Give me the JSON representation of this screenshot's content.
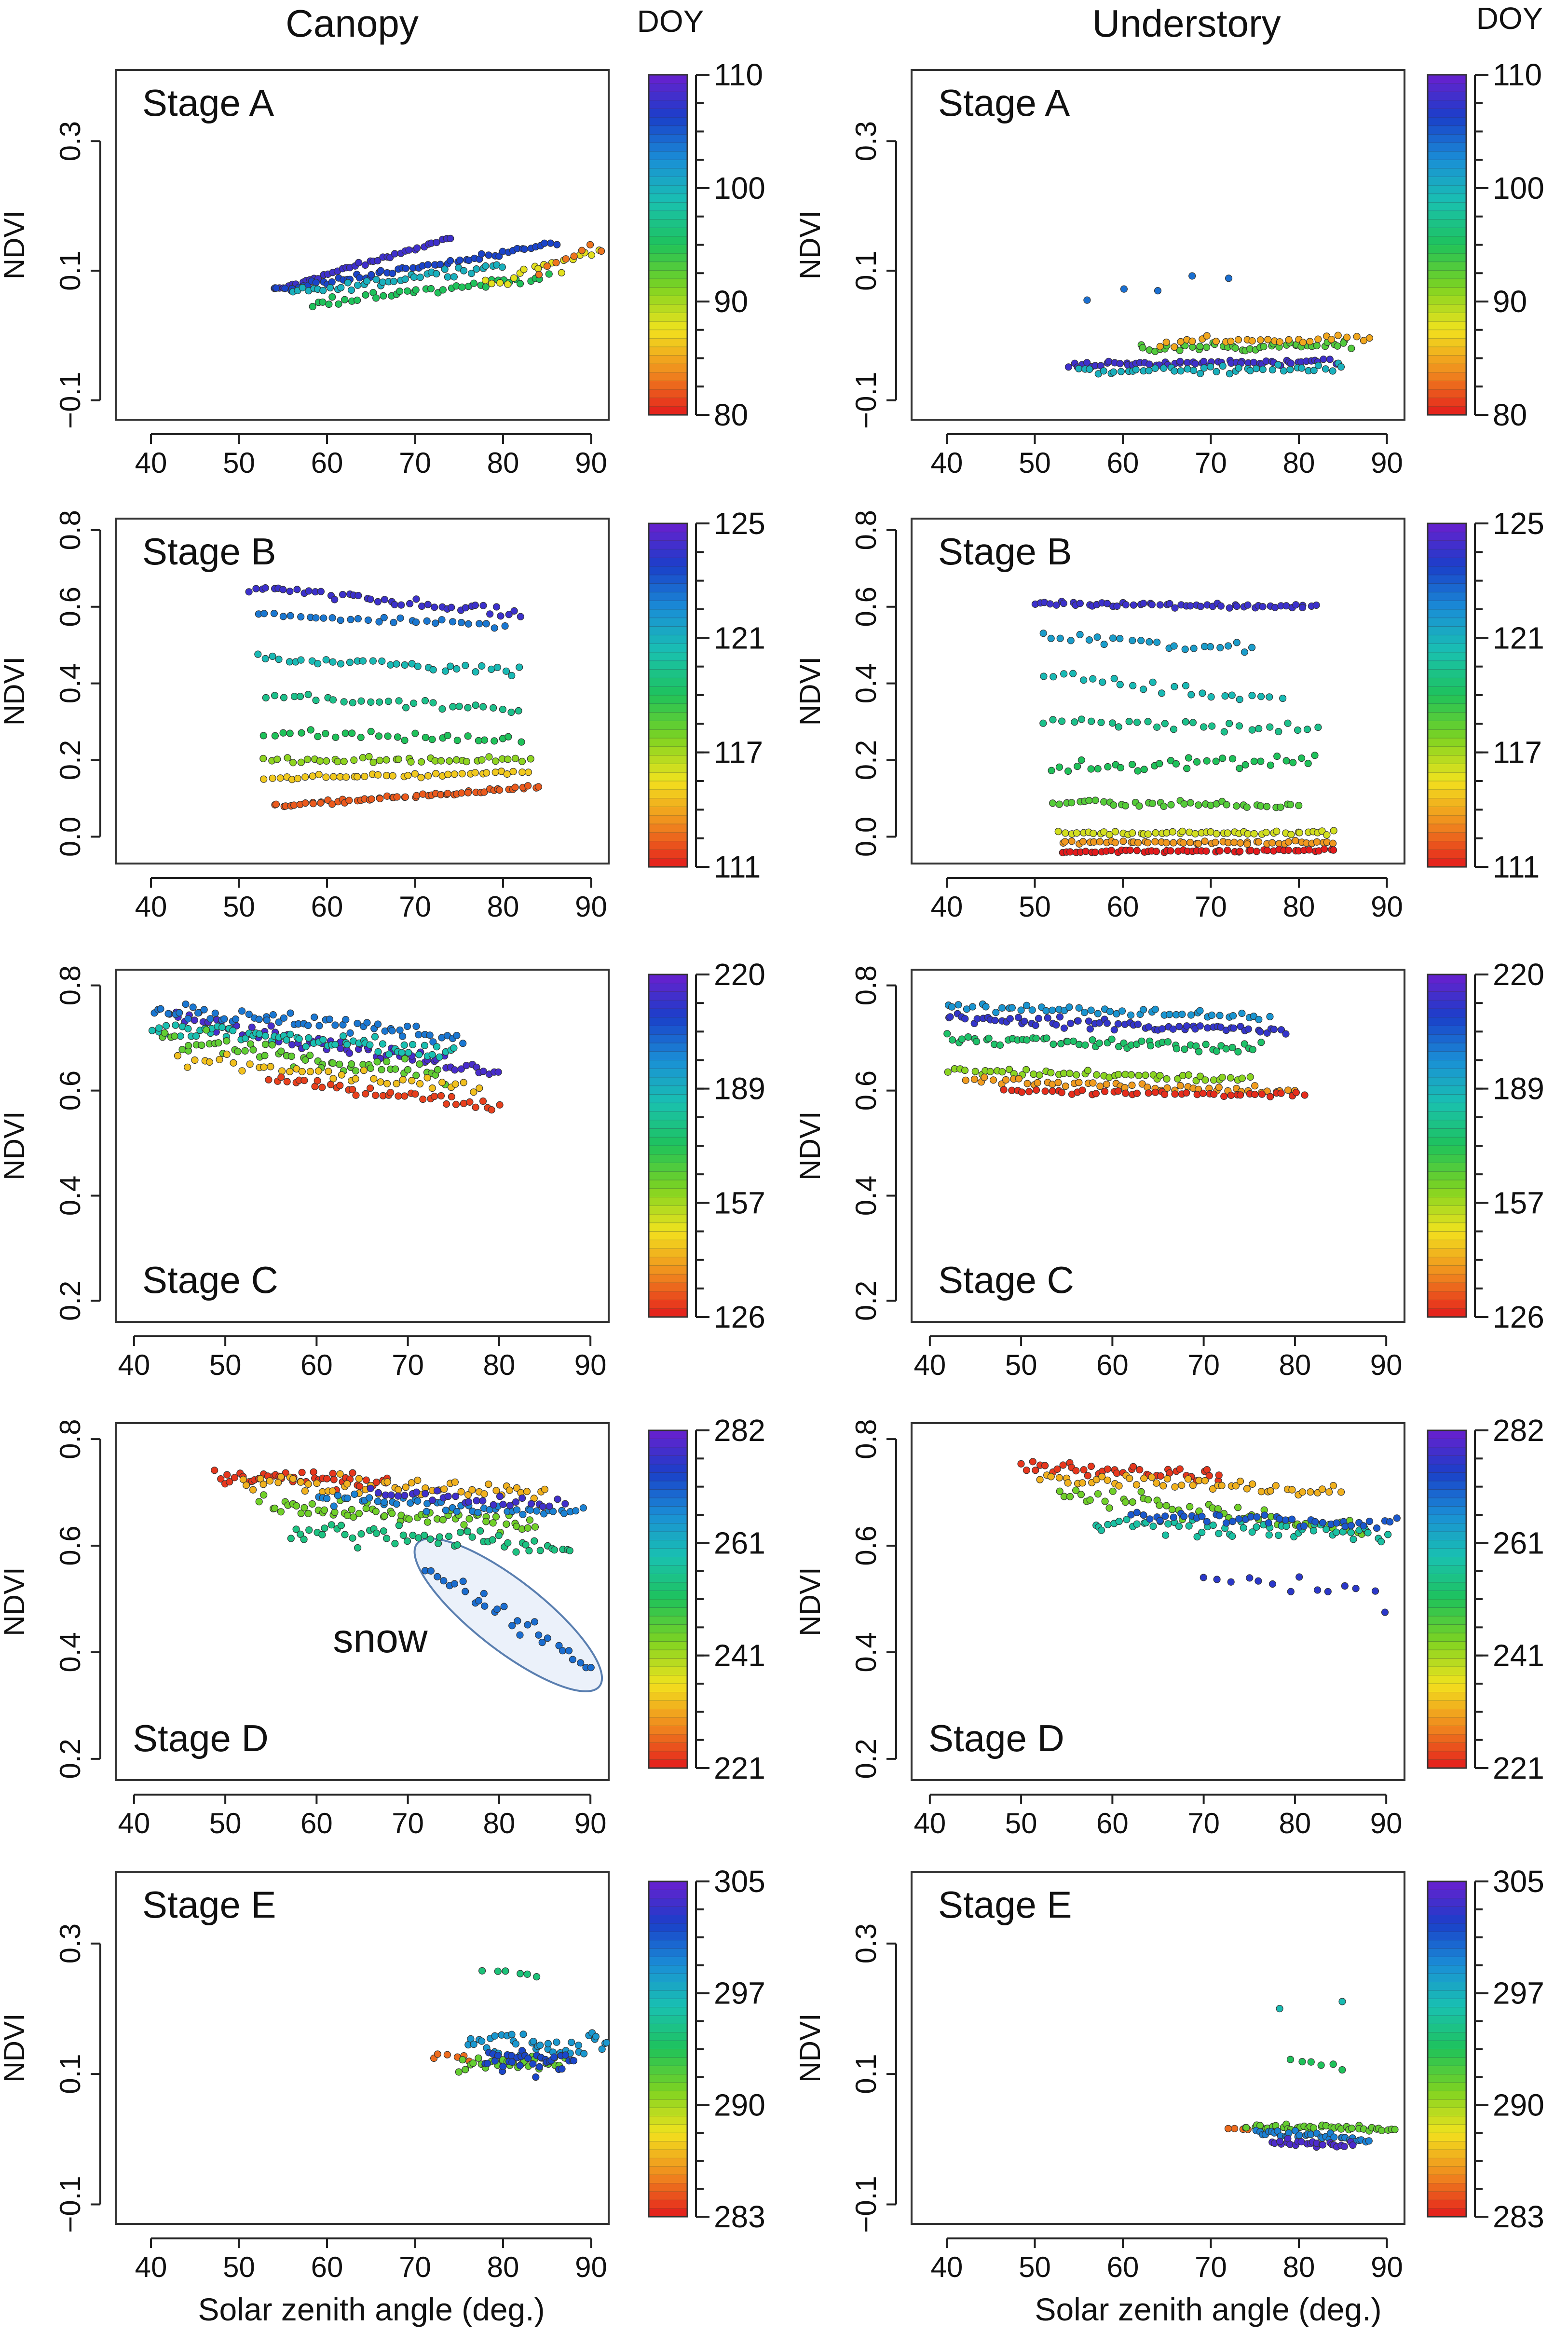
{
  "figure": {
    "col_titles": [
      "Canopy",
      "Understory"
    ],
    "doy_title": "DOY",
    "xlabel": "Solar zenith angle (deg.)",
    "ylabel": "NDVI",
    "colormap": [
      "#e41a1c",
      "#f08a1e",
      "#f2e21e",
      "#7ed321",
      "#1fc25a",
      "#19c1b0",
      "#1a8fd6",
      "#1a3fc9",
      "#6a1fcf"
    ]
  },
  "chart_data": [
    {
      "type": "scatter",
      "title": "Canopy",
      "stage": "Stage A",
      "xlabel": "Solar zenith angle (deg.)",
      "ylabel": "NDVI",
      "xlim": [
        36,
        92
      ],
      "ylim": [
        -0.13,
        0.41
      ],
      "xticks": [
        "40",
        "50",
        "60",
        "70",
        "80",
        "90"
      ],
      "yticks": [
        "-0.1",
        "0.1",
        "0.3"
      ],
      "doy_range": [
        80,
        110
      ],
      "doy_ticks": [
        "80",
        "90",
        "100",
        "110"
      ],
      "clusters": [
        {
          "doy": 108,
          "x0": 54,
          "x1": 74,
          "y0": 0.07,
          "y1": 0.15,
          "n": 40,
          "jitter": 0.004
        },
        {
          "doy": 106,
          "x0": 54,
          "x1": 86,
          "y0": 0.07,
          "y1": 0.14,
          "n": 60,
          "jitter": 0.005
        },
        {
          "doy": 100,
          "x0": 56,
          "x1": 80,
          "y0": 0.065,
          "y1": 0.11,
          "n": 40,
          "jitter": 0.008
        },
        {
          "doy": 95,
          "x0": 58,
          "x1": 85,
          "y0": 0.05,
          "y1": 0.09,
          "n": 40,
          "jitter": 0.008
        },
        {
          "doy": 88,
          "x0": 78,
          "x1": 91,
          "y0": 0.08,
          "y1": 0.13,
          "n": 18,
          "jitter": 0.015
        },
        {
          "doy": 83,
          "x0": 84,
          "x1": 91,
          "y0": 0.1,
          "y1": 0.14,
          "n": 8,
          "jitter": 0.01
        }
      ]
    },
    {
      "type": "scatter",
      "title": "Understory",
      "stage": "Stage A",
      "xlabel": "Solar zenith angle (deg.)",
      "ylabel": "NDVI",
      "xlim": [
        36,
        92
      ],
      "ylim": [
        -0.13,
        0.41
      ],
      "xticks": [
        "40",
        "50",
        "60",
        "70",
        "80",
        "90"
      ],
      "yticks": [
        "-0.1",
        "0.1",
        "0.3"
      ],
      "doy_range": [
        80,
        110
      ],
      "doy_ticks": [
        "80",
        "90",
        "100",
        "110"
      ],
      "clusters": [
        {
          "doy": 108,
          "x0": 54,
          "x1": 84,
          "y0": -0.045,
          "y1": -0.04,
          "n": 60,
          "jitter": 0.006
        },
        {
          "doy": 100,
          "x0": 55,
          "x1": 85,
          "y0": -0.055,
          "y1": -0.05,
          "n": 45,
          "jitter": 0.008
        },
        {
          "doy": 93,
          "x0": 62,
          "x1": 86,
          "y0": -0.02,
          "y1": -0.015,
          "n": 45,
          "jitter": 0.008
        },
        {
          "doy": 85,
          "x0": 64,
          "x1": 88,
          "y0": -0.01,
          "y1": -0.005,
          "n": 30,
          "jitter": 0.008
        },
        {
          "doy": 104,
          "x0": 56,
          "x1": 72,
          "y0": 0.06,
          "y1": 0.09,
          "n": 5,
          "jitter": 0.02
        }
      ]
    },
    {
      "type": "scatter",
      "title": "Canopy",
      "stage": "Stage B",
      "xlabel": "Solar zenith angle (deg.)",
      "ylabel": "NDVI",
      "xlim": [
        36,
        92
      ],
      "ylim": [
        -0.07,
        0.83
      ],
      "xticks": [
        "40",
        "50",
        "60",
        "70",
        "80",
        "90"
      ],
      "yticks": [
        "0.0",
        "0.2",
        "0.4",
        "0.6",
        "0.8"
      ],
      "doy_range": [
        111,
        125
      ],
      "doy_ticks": [
        "111",
        "117",
        "121",
        "125"
      ],
      "clusters": [
        {
          "doy": 124,
          "x0": 51,
          "x1": 82,
          "y0": 0.65,
          "y1": 0.58,
          "n": 45,
          "jitter": 0.015
        },
        {
          "doy": 122,
          "x0": 52,
          "x1": 80,
          "y0": 0.58,
          "y1": 0.55,
          "n": 30,
          "jitter": 0.01
        },
        {
          "doy": 120,
          "x0": 52,
          "x1": 82,
          "y0": 0.47,
          "y1": 0.43,
          "n": 35,
          "jitter": 0.015
        },
        {
          "doy": 119,
          "x0": 53,
          "x1": 82,
          "y0": 0.37,
          "y1": 0.33,
          "n": 30,
          "jitter": 0.015
        },
        {
          "doy": 118,
          "x0": 53,
          "x1": 82,
          "y0": 0.27,
          "y1": 0.25,
          "n": 30,
          "jitter": 0.015
        },
        {
          "doy": 116,
          "x0": 53,
          "x1": 83,
          "y0": 0.2,
          "y1": 0.2,
          "n": 40,
          "jitter": 0.01
        },
        {
          "doy": 114,
          "x0": 53,
          "x1": 83,
          "y0": 0.15,
          "y1": 0.17,
          "n": 40,
          "jitter": 0.008
        },
        {
          "doy": 112,
          "x0": 54,
          "x1": 84,
          "y0": 0.08,
          "y1": 0.13,
          "n": 60,
          "jitter": 0.006
        }
      ]
    },
    {
      "type": "scatter",
      "title": "Understory",
      "stage": "Stage B",
      "xlabel": "Solar zenith angle (deg.)",
      "ylabel": "NDVI",
      "xlim": [
        36,
        92
      ],
      "ylim": [
        -0.07,
        0.83
      ],
      "xticks": [
        "40",
        "50",
        "60",
        "70",
        "80",
        "90"
      ],
      "yticks": [
        "0.0",
        "0.2",
        "0.4",
        "0.6",
        "0.8"
      ],
      "doy_range": [
        111,
        125
      ],
      "doy_ticks": [
        "111",
        "117",
        "121",
        "125"
      ],
      "clusters": [
        {
          "doy": 124,
          "x0": 50,
          "x1": 82,
          "y0": 0.61,
          "y1": 0.6,
          "n": 55,
          "jitter": 0.008
        },
        {
          "doy": 121,
          "x0": 51,
          "x1": 75,
          "y0": 0.52,
          "y1": 0.49,
          "n": 25,
          "jitter": 0.02
        },
        {
          "doy": 120,
          "x0": 51,
          "x1": 78,
          "y0": 0.42,
          "y1": 0.36,
          "n": 25,
          "jitter": 0.02
        },
        {
          "doy": 119,
          "x0": 51,
          "x1": 82,
          "y0": 0.3,
          "y1": 0.28,
          "n": 30,
          "jitter": 0.02
        },
        {
          "doy": 118,
          "x0": 52,
          "x1": 82,
          "y0": 0.18,
          "y1": 0.2,
          "n": 35,
          "jitter": 0.02
        },
        {
          "doy": 117,
          "x0": 52,
          "x1": 80,
          "y0": 0.09,
          "y1": 0.08,
          "n": 40,
          "jitter": 0.01
        },
        {
          "doy": 115,
          "x0": 53,
          "x1": 84,
          "y0": 0.01,
          "y1": 0.01,
          "n": 50,
          "jitter": 0.006
        },
        {
          "doy": 113,
          "x0": 53,
          "x1": 84,
          "y0": -0.015,
          "y1": -0.015,
          "n": 50,
          "jitter": 0.005
        },
        {
          "doy": 111,
          "x0": 53,
          "x1": 84,
          "y0": -0.04,
          "y1": -0.035,
          "n": 55,
          "jitter": 0.004
        }
      ]
    },
    {
      "type": "scatter",
      "title": "Canopy",
      "stage": "Stage C",
      "xlabel": "Solar zenith angle (deg.)",
      "ylabel": "NDVI",
      "xlim": [
        38,
        92
      ],
      "ylim": [
        0.16,
        0.83
      ],
      "xticks": [
        "40",
        "50",
        "60",
        "70",
        "80",
        "90"
      ],
      "yticks": [
        "0.2",
        "0.4",
        "0.6",
        "0.8"
      ],
      "doy_range": [
        126,
        220
      ],
      "doy_ticks": [
        "126",
        "157",
        "189",
        "220"
      ],
      "clusters": [
        {
          "doy": 215,
          "x0": 44,
          "x1": 80,
          "y0": 0.74,
          "y1": 0.64,
          "n": 70,
          "jitter": 0.02
        },
        {
          "doy": 200,
          "x0": 42,
          "x1": 76,
          "y0": 0.76,
          "y1": 0.7,
          "n": 60,
          "jitter": 0.02
        },
        {
          "doy": 185,
          "x0": 42,
          "x1": 75,
          "y0": 0.72,
          "y1": 0.67,
          "n": 70,
          "jitter": 0.02
        },
        {
          "doy": 165,
          "x0": 43,
          "x1": 74,
          "y0": 0.7,
          "y1": 0.63,
          "n": 60,
          "jitter": 0.025
        },
        {
          "doy": 145,
          "x0": 45,
          "x1": 78,
          "y0": 0.66,
          "y1": 0.6,
          "n": 40,
          "jitter": 0.02
        },
        {
          "doy": 130,
          "x0": 55,
          "x1": 80,
          "y0": 0.62,
          "y1": 0.57,
          "n": 40,
          "jitter": 0.01
        }
      ]
    },
    {
      "type": "scatter",
      "title": "Understory",
      "stage": "Stage C",
      "xlabel": "Solar zenith angle (deg.)",
      "ylabel": "NDVI",
      "xlim": [
        38,
        92
      ],
      "ylim": [
        0.16,
        0.83
      ],
      "xticks": [
        "40",
        "50",
        "60",
        "70",
        "80",
        "90"
      ],
      "yticks": [
        "0.2",
        "0.4",
        "0.6",
        "0.8"
      ],
      "doy_range": [
        126,
        220
      ],
      "doy_ticks": [
        "126",
        "157",
        "189",
        "220"
      ],
      "clusters": [
        {
          "doy": 212,
          "x0": 42,
          "x1": 79,
          "y0": 0.74,
          "y1": 0.71,
          "n": 70,
          "jitter": 0.012
        },
        {
          "doy": 195,
          "x0": 42,
          "x1": 77,
          "y0": 0.76,
          "y1": 0.74,
          "n": 50,
          "jitter": 0.01
        },
        {
          "doy": 175,
          "x0": 42,
          "x1": 76,
          "y0": 0.7,
          "y1": 0.68,
          "n": 60,
          "jitter": 0.012
        },
        {
          "doy": 160,
          "x0": 42,
          "x1": 75,
          "y0": 0.64,
          "y1": 0.62,
          "n": 50,
          "jitter": 0.01
        },
        {
          "doy": 140,
          "x0": 44,
          "x1": 80,
          "y0": 0.62,
          "y1": 0.6,
          "n": 50,
          "jitter": 0.01
        },
        {
          "doy": 128,
          "x0": 48,
          "x1": 81,
          "y0": 0.6,
          "y1": 0.59,
          "n": 45,
          "jitter": 0.006
        }
      ]
    },
    {
      "type": "scatter",
      "title": "Canopy",
      "stage": "Stage D",
      "xlabel": "Solar zenith angle (deg.)",
      "ylabel": "NDVI",
      "xlim": [
        38,
        92
      ],
      "ylim": [
        0.16,
        0.83
      ],
      "xticks": [
        "40",
        "50",
        "60",
        "70",
        "80",
        "90"
      ],
      "yticks": [
        "0.2",
        "0.4",
        "0.6",
        "0.8"
      ],
      "doy_range": [
        221,
        282
      ],
      "doy_ticks": [
        "221",
        "241",
        "261",
        "282"
      ],
      "annotation": "snow",
      "clusters": [
        {
          "doy": 223,
          "x0": 49,
          "x1": 68,
          "y0": 0.73,
          "y1": 0.72,
          "n": 45,
          "jitter": 0.02
        },
        {
          "doy": 232,
          "x0": 52,
          "x1": 85,
          "y0": 0.72,
          "y1": 0.7,
          "n": 55,
          "jitter": 0.02
        },
        {
          "doy": 245,
          "x0": 54,
          "x1": 84,
          "y0": 0.68,
          "y1": 0.64,
          "n": 65,
          "jitter": 0.025
        },
        {
          "doy": 255,
          "x0": 57,
          "x1": 88,
          "y0": 0.63,
          "y1": 0.6,
          "n": 55,
          "jitter": 0.03
        },
        {
          "doy": 268,
          "x0": 60,
          "x1": 89,
          "y0": 0.69,
          "y1": 0.66,
          "n": 50,
          "jitter": 0.015
        },
        {
          "doy": 278,
          "x0": 66,
          "x1": 87,
          "y0": 0.7,
          "y1": 0.68,
          "n": 30,
          "jitter": 0.015
        },
        {
          "doy": 270,
          "x0": 72,
          "x1": 90,
          "y0": 0.56,
          "y1": 0.37,
          "n": 30,
          "jitter": 0.02
        }
      ]
    },
    {
      "type": "scatter",
      "title": "Understory",
      "stage": "Stage D",
      "xlabel": "Solar zenith angle (deg.)",
      "ylabel": "NDVI",
      "xlim": [
        38,
        92
      ],
      "ylim": [
        0.16,
        0.83
      ],
      "xticks": [
        "40",
        "50",
        "60",
        "70",
        "80",
        "90"
      ],
      "yticks": [
        "0.2",
        "0.4",
        "0.6",
        "0.8"
      ],
      "doy_range": [
        221,
        282
      ],
      "doy_ticks": [
        "221",
        "241",
        "261",
        "282"
      ],
      "clusters": [
        {
          "doy": 223,
          "x0": 50,
          "x1": 72,
          "y0": 0.75,
          "y1": 0.73,
          "n": 40,
          "jitter": 0.015
        },
        {
          "doy": 232,
          "x0": 52,
          "x1": 85,
          "y0": 0.73,
          "y1": 0.7,
          "n": 50,
          "jitter": 0.015
        },
        {
          "doy": 245,
          "x0": 54,
          "x1": 88,
          "y0": 0.7,
          "y1": 0.63,
          "n": 55,
          "jitter": 0.02
        },
        {
          "doy": 258,
          "x0": 58,
          "x1": 90,
          "y0": 0.64,
          "y1": 0.62,
          "n": 55,
          "jitter": 0.02
        },
        {
          "doy": 272,
          "x0": 62,
          "x1": 91,
          "y0": 0.66,
          "y1": 0.64,
          "n": 45,
          "jitter": 0.015
        },
        {
          "doy": 276,
          "x0": 70,
          "x1": 90,
          "y0": 0.55,
          "y1": 0.5,
          "n": 14,
          "jitter": 0.03
        }
      ]
    },
    {
      "type": "scatter",
      "title": "Canopy",
      "stage": "Stage E",
      "xlabel": "Solar zenith angle (deg.)",
      "ylabel": "NDVI",
      "xlim": [
        36,
        92
      ],
      "ylim": [
        -0.13,
        0.41
      ],
      "xticks": [
        "40",
        "50",
        "60",
        "70",
        "80",
        "90"
      ],
      "yticks": [
        "-0.1",
        "0.1",
        "0.3"
      ],
      "doy_range": [
        283,
        305
      ],
      "doy_ticks": [
        "283",
        "290",
        "297",
        "305"
      ],
      "clusters": [
        {
          "doy": 285,
          "x0": 72,
          "x1": 76,
          "y0": 0.13,
          "y1": 0.12,
          "n": 6,
          "jitter": 0.01
        },
        {
          "doy": 292,
          "x0": 75,
          "x1": 87,
          "y0": 0.11,
          "y1": 0.12,
          "n": 30,
          "jitter": 0.015
        },
        {
          "doy": 295,
          "x0": 78,
          "x1": 84,
          "y0": 0.26,
          "y1": 0.25,
          "n": 6,
          "jitter": 0.005
        },
        {
          "doy": 299,
          "x0": 76,
          "x1": 92,
          "y0": 0.15,
          "y1": 0.14,
          "n": 40,
          "jitter": 0.025
        },
        {
          "doy": 302,
          "x0": 78,
          "x1": 88,
          "y0": 0.12,
          "y1": 0.12,
          "n": 35,
          "jitter": 0.025
        }
      ]
    },
    {
      "type": "scatter",
      "title": "Understory",
      "stage": "Stage E",
      "xlabel": "Solar zenith angle (deg.)",
      "ylabel": "NDVI",
      "xlim": [
        36,
        92
      ],
      "ylim": [
        -0.13,
        0.41
      ],
      "xticks": [
        "40",
        "50",
        "60",
        "70",
        "80",
        "90"
      ],
      "yticks": [
        "-0.1",
        "0.1",
        "0.3"
      ],
      "doy_range": [
        283,
        305
      ],
      "doy_ticks": [
        "283",
        "290",
        "297",
        "305"
      ],
      "clusters": [
        {
          "doy": 285,
          "x0": 72,
          "x1": 76,
          "y0": 0.015,
          "y1": 0.015,
          "n": 6,
          "jitter": 0.004
        },
        {
          "doy": 292,
          "x0": 74,
          "x1": 91,
          "y0": 0.02,
          "y1": 0.015,
          "n": 40,
          "jitter": 0.006
        },
        {
          "doy": 294,
          "x0": 79,
          "x1": 85,
          "y0": 0.12,
          "y1": 0.11,
          "n": 6,
          "jitter": 0.005
        },
        {
          "doy": 300,
          "x0": 75,
          "x1": 88,
          "y0": 0.01,
          "y1": 0.0,
          "n": 35,
          "jitter": 0.008
        },
        {
          "doy": 304,
          "x0": 77,
          "x1": 86,
          "y0": -0.005,
          "y1": -0.01,
          "n": 25,
          "jitter": 0.006
        },
        {
          "doy": 297,
          "x0": 78,
          "x1": 92,
          "y0": 0.2,
          "y1": 0.22,
          "n": 3,
          "jitter": 0.01
        }
      ]
    }
  ]
}
